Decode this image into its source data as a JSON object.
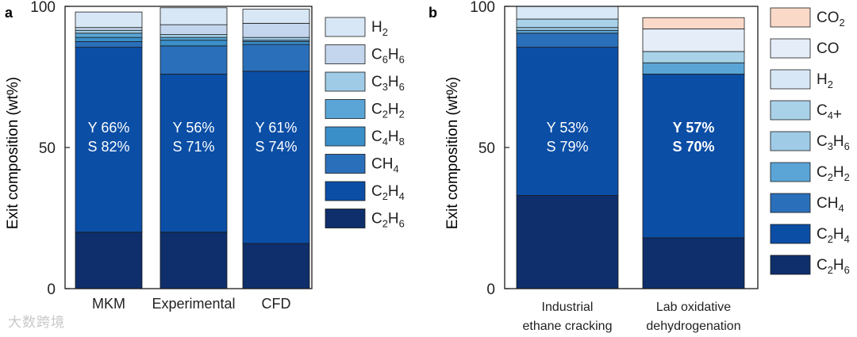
{
  "colors": {
    "C2H6": "#0e2f6b",
    "C2H4": "#0b4ea6",
    "CH4": "#2a6fba",
    "C4H8": "#3a8fc9",
    "C2H2": "#5aa5d6",
    "C3H6": "#9fcbe6",
    "C6H6": "#c4d6ee",
    "H2": "#d8e7f6",
    "C4plus": "#a9d2e8",
    "CO": "#e4edf8",
    "CO2": "#fbd9c9"
  },
  "watermark": "大数跨境",
  "chart_data": [
    {
      "panel_label": "a",
      "type": "bar",
      "stacked": true,
      "ylabel": "Exit composition (wt%)",
      "ylim": [
        0,
        100
      ],
      "yticks": [
        0,
        50,
        100
      ],
      "categories": [
        "MKM",
        "Experimental",
        "CFD"
      ],
      "series": [
        {
          "key": "C2H6",
          "values": [
            20,
            20,
            16
          ]
        },
        {
          "key": "C2H4",
          "values": [
            65.5,
            56,
            61
          ]
        },
        {
          "key": "CH4",
          "values": [
            2,
            10,
            9.5
          ]
        },
        {
          "key": "C4H8",
          "values": [
            1.5,
            2,
            1
          ]
        },
        {
          "key": "C2H2",
          "values": [
            1.5,
            1,
            0.5
          ]
        },
        {
          "key": "C3H6",
          "values": [
            1,
            1,
            1
          ]
        },
        {
          "key": "C6H6",
          "values": [
            1,
            3.5,
            5
          ]
        },
        {
          "key": "H2",
          "values": [
            5.5,
            6,
            5
          ]
        }
      ],
      "annotations": [
        {
          "line1": "Y 66%",
          "line2": "S 82%",
          "bold": false
        },
        {
          "line1": "Y 56%",
          "line2": "S 71%",
          "bold": false
        },
        {
          "line1": "Y 61%",
          "line2": "S 74%",
          "bold": false
        }
      ],
      "legend": [
        {
          "key": "H2",
          "base": "H",
          "sub": "2",
          "tail": ""
        },
        {
          "key": "C6H6",
          "base": "C",
          "sub": "6",
          "mid": "H",
          "sub2": "6"
        },
        {
          "key": "C3H6",
          "base": "C",
          "sub": "3",
          "mid": "H",
          "sub2": "6"
        },
        {
          "key": "C2H2",
          "base": "C",
          "sub": "2",
          "mid": "H",
          "sub2": "2"
        },
        {
          "key": "C4H8",
          "base": "C",
          "sub": "4",
          "mid": "H",
          "sub2": "8"
        },
        {
          "key": "CH4",
          "base": "CH",
          "sub": "4"
        },
        {
          "key": "C2H4",
          "base": "C",
          "sub": "2",
          "mid": "H",
          "sub2": "4"
        },
        {
          "key": "C2H6",
          "base": "C",
          "sub": "2",
          "mid": "H",
          "sub2": "6"
        }
      ]
    },
    {
      "panel_label": "b",
      "type": "bar",
      "stacked": true,
      "ylabel": "Exit composition (wt%)",
      "ylim": [
        0,
        100
      ],
      "yticks": [
        0,
        50,
        100
      ],
      "categories": [
        "Industrial\nethane cracking",
        "Lab oxidative\ndehydrogenation"
      ],
      "series": [
        {
          "key": "C2H6",
          "values": [
            33,
            18
          ]
        },
        {
          "key": "C2H4",
          "values": [
            52.5,
            58
          ]
        },
        {
          "key": "CH4",
          "values": [
            5,
            0
          ]
        },
        {
          "key": "C2H2",
          "values": [
            1,
            4
          ]
        },
        {
          "key": "C3H6",
          "values": [
            1,
            0
          ]
        },
        {
          "key": "C4plus",
          "values": [
            3,
            4
          ]
        },
        {
          "key": "H2",
          "values": [
            4.5,
            0
          ]
        },
        {
          "key": "CO",
          "values": [
            0,
            8
          ]
        },
        {
          "key": "CO2",
          "values": [
            0,
            4
          ]
        }
      ],
      "annotations": [
        {
          "line1": "Y 53%",
          "line2": "S 79%",
          "bold": false
        },
        {
          "line1": "Y 57%",
          "line2": "S 70%",
          "bold": true
        }
      ],
      "legend": [
        {
          "key": "CO2",
          "base": "CO",
          "sub": "2"
        },
        {
          "key": "CO",
          "base": "CO"
        },
        {
          "key": "H2",
          "base": "H",
          "sub": "2"
        },
        {
          "key": "C4plus",
          "base": "C",
          "sub": "4",
          "tail": "+"
        },
        {
          "key": "C3H6",
          "base": "C",
          "sub": "3",
          "mid": "H",
          "sub2": "6"
        },
        {
          "key": "C2H2",
          "base": "C",
          "sub": "2",
          "mid": "H",
          "sub2": "2"
        },
        {
          "key": "CH4",
          "base": "CH",
          "sub": "4"
        },
        {
          "key": "C2H4",
          "base": "C",
          "sub": "2",
          "mid": "H",
          "sub2": "4"
        },
        {
          "key": "C2H6",
          "base": "C",
          "sub": "2",
          "mid": "H",
          "sub2": "6"
        }
      ]
    }
  ]
}
